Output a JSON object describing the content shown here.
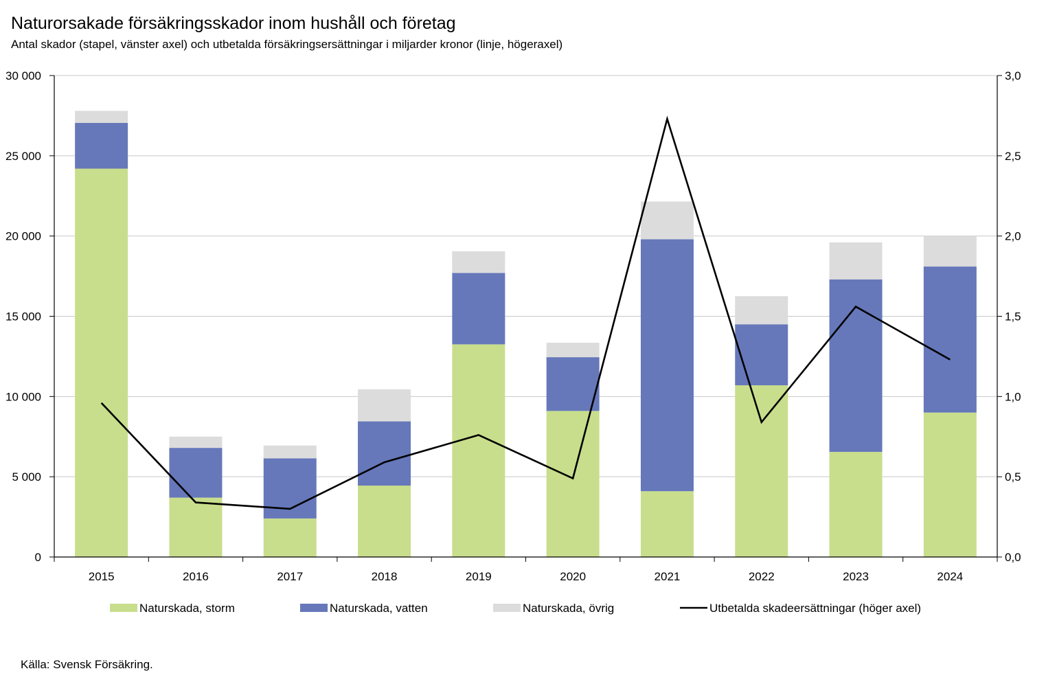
{
  "chart_data": {
    "type": "bar",
    "stacked": true,
    "title": "Naturorsakade försäkringsskador inom hushåll och företag",
    "subtitle": "Antal skador (stapel, vänster axel) och utbetalda försäkringsersättningar i miljarder kronor (linje, högeraxel)",
    "source": "Källa: Svensk Försäkring.",
    "categories": [
      "2015",
      "2016",
      "2017",
      "2018",
      "2019",
      "2020",
      "2021",
      "2022",
      "2023",
      "2024"
    ],
    "series": [
      {
        "name": "Naturskada, storm",
        "color": "#c8de8c",
        "axis": "left",
        "values": [
          24200,
          3700,
          2400,
          4450,
          13250,
          9100,
          4100,
          10700,
          6550,
          9000
        ]
      },
      {
        "name": "Naturskada, vatten",
        "color": "#6678ba",
        "axis": "left",
        "values": [
          2850,
          3100,
          3750,
          4000,
          4450,
          3350,
          15700,
          3800,
          10750,
          9100
        ]
      },
      {
        "name": "Naturskada, övrig",
        "color": "#dcdcdc",
        "axis": "left",
        "values": [
          750,
          700,
          800,
          2000,
          1350,
          900,
          2350,
          1750,
          2300,
          1900
        ]
      },
      {
        "name": "Utbetalda skadeersättningar (höger axel)",
        "color": "#000000",
        "axis": "right",
        "type": "line",
        "values": [
          0.96,
          0.34,
          0.3,
          0.59,
          0.76,
          0.49,
          2.73,
          0.84,
          1.56,
          1.23
        ]
      }
    ],
    "ylim_left": [
      0,
      30000
    ],
    "ylim_right": [
      0,
      3.0
    ],
    "yticks_left": [
      "0",
      "5 000",
      "10 000",
      "15 000",
      "20 000",
      "25 000",
      "30 000"
    ],
    "yticks_right": [
      "0,0",
      "0,5",
      "1,0",
      "1,5",
      "2,0",
      "2,5",
      "3,0"
    ],
    "grid": true,
    "legend_position": "bottom",
    "colors": {
      "grid": "#c8c8c8",
      "axis": "#000000"
    }
  }
}
